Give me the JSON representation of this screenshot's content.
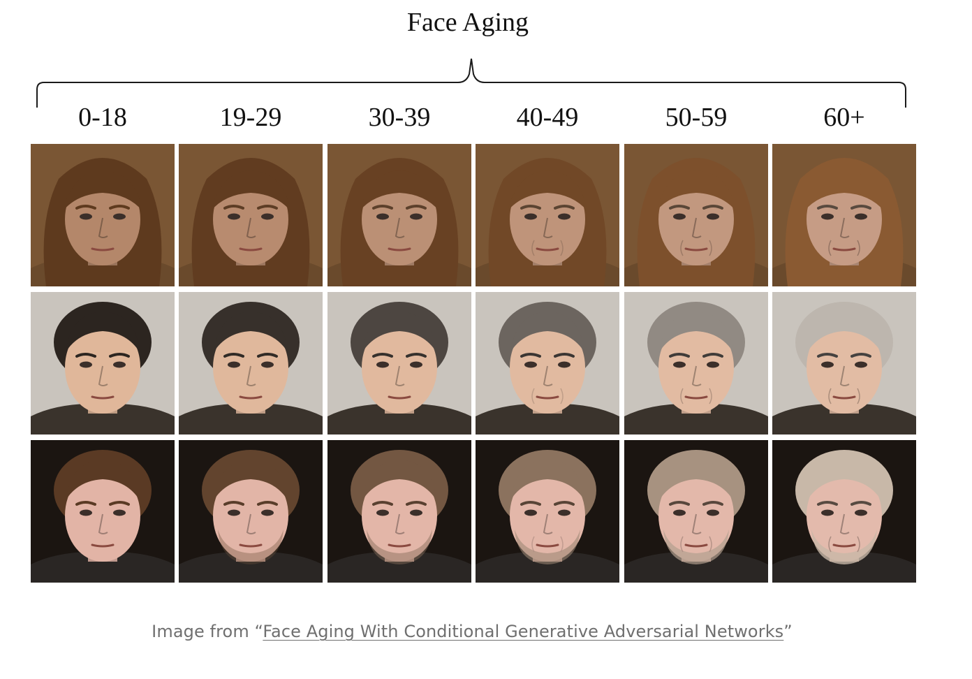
{
  "figure": {
    "title": "Face Aging",
    "age_groups": [
      "0-18",
      "19-29",
      "30-39",
      "40-49",
      "50-59",
      "60+"
    ]
  },
  "rows": [
    {
      "name": "woman",
      "bg": "#7a5634",
      "hair": "#5e3a1e",
      "skin": "#b4876a",
      "hair_aged": "#8a5a32",
      "shirt": "#6a4a2c"
    },
    {
      "name": "young-man",
      "bg": "#c9c4bd",
      "hair": "#2c2520",
      "skin": "#e0b79a",
      "hair_aged": "#bdb6ae",
      "shirt": "#3a332c"
    },
    {
      "name": "bearded-man",
      "bg": "#1b1511",
      "hair": "#5a3a24",
      "skin": "#e2b4a6",
      "hair_aged": "#c8b8a8",
      "shirt": "#2a2624"
    }
  ],
  "caption": {
    "prefix": "Image from “",
    "link_text": "Face Aging With Conditional Generative Adversarial Networks",
    "suffix": "”"
  }
}
